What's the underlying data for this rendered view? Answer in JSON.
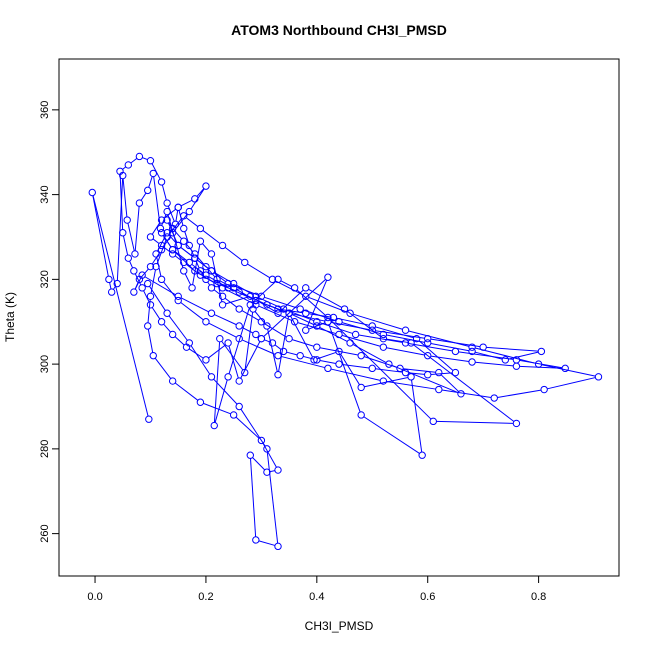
{
  "chart_data": {
    "type": "line",
    "title": "ATOM3 Northbound CH3I_PMSD",
    "xlabel": "CH3I_PMSD",
    "ylabel": "Theta (K)",
    "xlim": [
      -0.065,
      0.945
    ],
    "ylim": [
      250.0,
      372.0
    ],
    "xticks": [
      "0.0",
      "0.2",
      "0.4",
      "0.6",
      "0.8"
    ],
    "yticks": [
      "260",
      "280",
      "300",
      "320",
      "340",
      "360"
    ],
    "grid": false,
    "legend": "none",
    "color": "#0000ff",
    "series": [
      {
        "marker": "open-circle",
        "x": [
          0.097,
          -0.005,
          0.025,
          0.03,
          0.04,
          0.05,
          0.058,
          0.072,
          0.08,
          0.095,
          0.105,
          0.118,
          0.13,
          0.16,
          0.175,
          0.19,
          0.21,
          0.23,
          0.28,
          0.33,
          0.38,
          0.45,
          0.52,
          0.57,
          0.76,
          0.61,
          0.42,
          0.36,
          0.33,
          0.28,
          0.24,
          0.215,
          0.225,
          0.27,
          0.285,
          0.31,
          0.33,
          0.35,
          0.395,
          0.44,
          0.48,
          0.57,
          0.59,
          0.48,
          0.42,
          0.38,
          0.42,
          0.3,
          0.26,
          0.24,
          0.2,
          0.165,
          0.14,
          0.12,
          0.1,
          0.085,
          0.07,
          0.06,
          0.05,
          0.045,
          0.06,
          0.08,
          0.1,
          0.12,
          0.13,
          0.145,
          0.15,
          0.16,
          0.17,
          0.18,
          0.19,
          0.2,
          0.21,
          0.23,
          0.26,
          0.3,
          0.35,
          0.4,
          0.48,
          0.55,
          0.62,
          0.66,
          0.53,
          0.46,
          0.4,
          0.35,
          0.31,
          0.26,
          0.22,
          0.19,
          0.16,
          0.14,
          0.12,
          0.1,
          0.12,
          0.15,
          0.18,
          0.2,
          0.17,
          0.14,
          0.12,
          0.1,
          0.08,
          0.07,
          0.085,
          0.15,
          0.21,
          0.26,
          0.29,
          0.3,
          0.32,
          0.34,
          0.37,
          0.4,
          0.44,
          0.5,
          0.56,
          0.6,
          0.65,
          0.58,
          0.5,
          0.43,
          0.38,
          0.33,
          0.29,
          0.25,
          0.22,
          0.2,
          0.18,
          0.16,
          0.14,
          0.13,
          0.15,
          0.18,
          0.21,
          0.24,
          0.3,
          0.37,
          0.44,
          0.52,
          0.6,
          0.68,
          0.74,
          0.805,
          0.7,
          0.6,
          0.5,
          0.42,
          0.35,
          0.29,
          0.24,
          0.2,
          0.17,
          0.14,
          0.12,
          0.14,
          0.18,
          0.23,
          0.29,
          0.36,
          0.44,
          0.52,
          0.6,
          0.68,
          0.76,
          0.848,
          0.76,
          0.65,
          0.56,
          0.47,
          0.4,
          0.34,
          0.29,
          0.25,
          0.21,
          0.18,
          0.15,
          0.13,
          0.11,
          0.12,
          0.15,
          0.2,
          0.26,
          0.33,
          0.42,
          0.52,
          0.62,
          0.72,
          0.81,
          0.908,
          0.8,
          0.68,
          0.56,
          0.46,
          0.38,
          0.32,
          0.27,
          0.23,
          0.19,
          0.16,
          0.13,
          0.11,
          0.1,
          0.095,
          0.105,
          0.14,
          0.19,
          0.25,
          0.3,
          0.33,
          0.31,
          0.28,
          0.29,
          0.33,
          0.31,
          0.26,
          0.21,
          0.17,
          0.13,
          0.095
        ],
        "y": [
          287,
          340.5,
          320,
          317,
          319,
          344.5,
          334,
          326,
          338,
          341,
          345,
          332,
          336,
          322,
          318,
          329,
          326,
          314,
          316,
          312,
          318,
          313,
          306,
          305,
          286,
          286.5,
          311,
          318,
          320,
          314,
          297,
          285.5,
          306,
          298,
          313,
          309,
          297.5,
          312,
          301,
          303,
          294.5,
          297,
          278.5,
          288,
          310,
          308,
          320.5,
          306,
          296,
          305,
          301,
          304,
          307,
          310,
          314,
          318,
          322,
          325,
          331,
          345.5,
          347,
          349,
          348,
          343,
          338,
          333,
          337,
          332,
          328,
          325,
          322,
          320,
          318,
          316,
          313,
          310,
          306,
          304,
          302,
          299,
          298,
          293,
          300,
          305,
          309,
          312,
          314,
          317,
          319,
          321,
          324,
          326,
          328,
          330,
          334,
          337,
          339,
          342,
          336,
          331,
          327,
          323,
          320,
          317,
          321,
          316,
          312,
          309,
          307,
          306,
          305,
          303,
          302,
          301,
          300,
          299,
          298,
          297.5,
          298,
          306,
          309,
          311,
          312,
          313,
          315,
          318,
          320,
          323,
          326,
          329,
          332,
          334,
          328,
          325,
          322,
          319,
          316,
          313,
          310,
          307,
          305,
          303,
          301,
          303,
          304,
          306,
          308,
          310,
          312,
          315,
          318,
          321,
          324,
          327,
          331,
          327,
          322,
          318,
          314,
          310,
          307,
          304,
          302,
          300.5,
          299.5,
          299,
          301,
          303,
          305,
          307,
          310,
          313,
          316,
          319,
          322,
          325,
          328,
          331,
          326,
          320,
          315,
          310,
          306,
          302,
          299,
          296,
          294,
          292,
          294,
          297,
          300,
          304,
          308,
          312,
          316,
          320,
          324,
          328,
          332,
          335,
          330,
          323,
          316,
          309,
          302,
          296,
          291,
          288,
          282,
          275,
          274.5,
          278.5,
          258.5,
          257,
          280,
          290,
          297,
          305,
          312,
          319
        ]
      }
    ]
  }
}
